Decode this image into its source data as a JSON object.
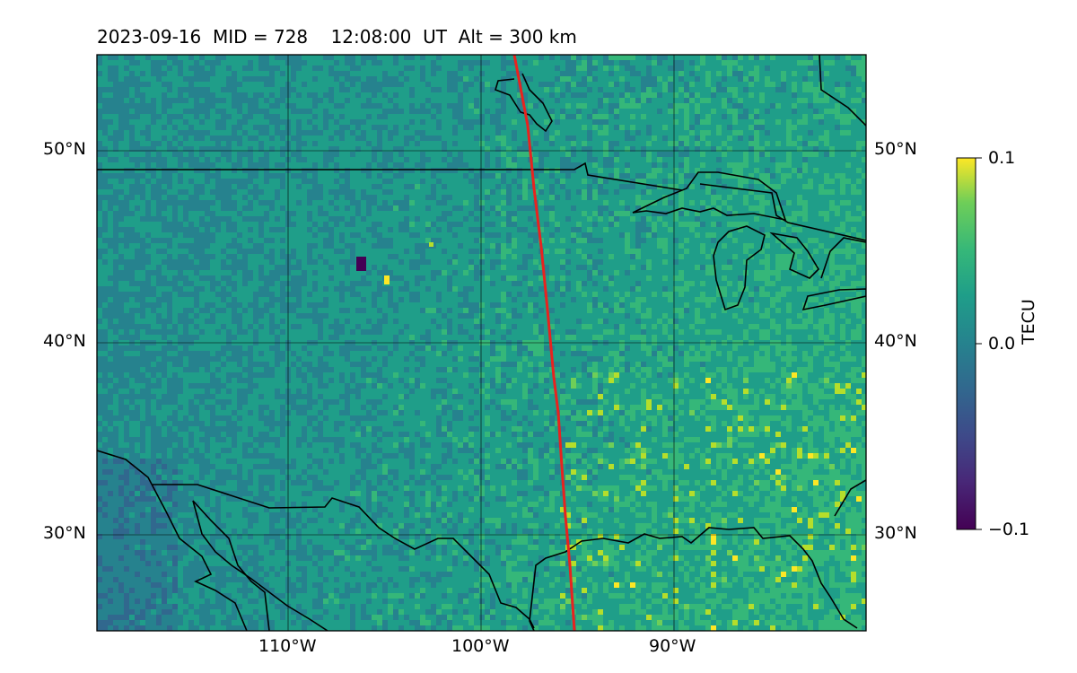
{
  "title": "2023-09-16  MID = 728    12:08:00  UT  Alt = 300 km",
  "lat_labels": [
    "50°N",
    "40°N",
    "30°N"
  ],
  "lon_labels": [
    "110°W",
    "100°W",
    "90°W"
  ],
  "colorbar": {
    "label": "TECU",
    "ticks": [
      "0.1",
      "0.0",
      "−0.1"
    ],
    "colormap": "viridis",
    "min": -0.1,
    "max": 0.1
  },
  "colors": {
    "terminator": "#e8231f",
    "coastline": "#000000"
  }
}
